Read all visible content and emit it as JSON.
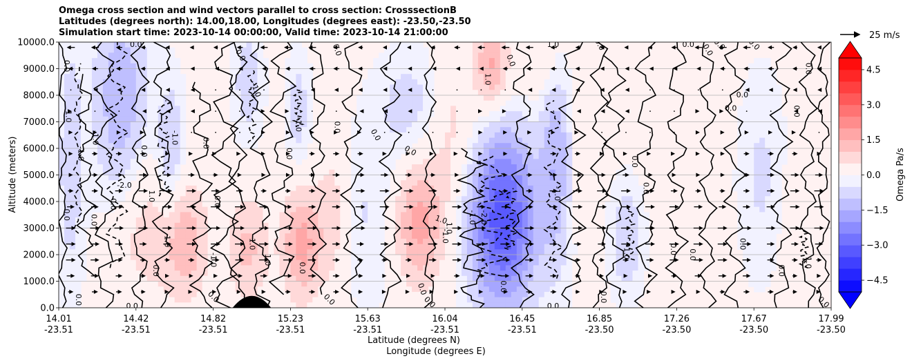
{
  "chart_data": {
    "type": "contour",
    "title_lines": [
      "Omega cross section and wind vectors parallel to cross section: CrosssectionB",
      "Latitudes (degrees north): 14.00,18.00, Longitudes (degrees east): -23.50,-23.50",
      "Simulation start time: 2023-10-14 00:00:00, Valid time: 2023-10-14 21:00:00"
    ],
    "ylabel": "Altitude (meters)",
    "xlabel_lat": "Latitude (degrees N)",
    "xlabel_lon": "Longitude (degrees E)",
    "ylim": [
      0,
      10000
    ],
    "y_ticks": [
      {
        "value": 0,
        "label": "0.0"
      },
      {
        "value": 1000,
        "label": "1000.0"
      },
      {
        "value": 2000,
        "label": "2000.0"
      },
      {
        "value": 3000,
        "label": "3000.0"
      },
      {
        "value": 4000,
        "label": "4000.0"
      },
      {
        "value": 5000,
        "label": "5000.0"
      },
      {
        "value": 6000,
        "label": "6000.0"
      },
      {
        "value": 7000,
        "label": "7000.0"
      },
      {
        "value": 8000,
        "label": "8000.0"
      },
      {
        "value": 9000,
        "label": "9000.0"
      },
      {
        "value": 10000,
        "label": "10000.0"
      }
    ],
    "x_ticks": [
      {
        "lat": "14.01",
        "lon": "-23.51",
        "frac": 0.0
      },
      {
        "lat": "14.42",
        "lon": "-23.51",
        "frac": 0.1
      },
      {
        "lat": "14.82",
        "lon": "-23.51",
        "frac": 0.2
      },
      {
        "lat": "15.23",
        "lon": "-23.51",
        "frac": 0.3
      },
      {
        "lat": "15.63",
        "lon": "-23.51",
        "frac": 0.4
      },
      {
        "lat": "16.04",
        "lon": "-23.51",
        "frac": 0.5
      },
      {
        "lat": "16.45",
        "lon": "-23.51",
        "frac": 0.6
      },
      {
        "lat": "16.85",
        "lon": "-23.50",
        "frac": 0.7
      },
      {
        "lat": "17.26",
        "lon": "-23.50",
        "frac": 0.8
      },
      {
        "lat": "17.67",
        "lon": "-23.50",
        "frac": 0.9
      },
      {
        "lat": "17.99",
        "lon": "-23.50",
        "frac": 1.0
      }
    ],
    "colorbar": {
      "label": "Omega Pa/s",
      "range": [
        -5.0,
        5.0
      ],
      "step": 0.5,
      "ticks": [
        "4.5",
        "3.0",
        "1.5",
        "0.0",
        "−1.5",
        "−3.0",
        "−4.5"
      ],
      "tick_values": [
        4.5,
        3.0,
        1.5,
        0.0,
        -1.5,
        -3.0,
        -4.5
      ]
    },
    "quiver_key": {
      "label": "25 m/s",
      "speed": 25
    },
    "features": [
      {
        "kind": "neg",
        "x": 0.08,
        "y": 7800,
        "sx": 0.025,
        "sy": 2800,
        "amp": -1.4
      },
      {
        "kind": "neg",
        "x": 0.015,
        "y": 5500,
        "sx": 0.012,
        "sy": 3500,
        "amp": -0.8
      },
      {
        "kind": "neg",
        "x": 0.145,
        "y": 5800,
        "sx": 0.012,
        "sy": 1800,
        "amp": -1.1
      },
      {
        "kind": "neg",
        "x": 0.245,
        "y": 8500,
        "sx": 0.012,
        "sy": 1400,
        "amp": -0.9
      },
      {
        "kind": "neg",
        "x": 0.31,
        "y": 7400,
        "sx": 0.01,
        "sy": 1400,
        "amp": -0.8
      },
      {
        "kind": "neg",
        "x": 0.41,
        "y": 3500,
        "sx": 0.04,
        "sy": 2200,
        "amp": -0.6
      },
      {
        "kind": "neg",
        "x": 0.575,
        "y": 3300,
        "sx": 0.03,
        "sy": 2300,
        "amp": -3.4
      },
      {
        "kind": "neg",
        "x": 0.645,
        "y": 5600,
        "sx": 0.015,
        "sy": 2800,
        "amp": -1.4
      },
      {
        "kind": "neg",
        "x": 0.735,
        "y": 2600,
        "sx": 0.014,
        "sy": 1400,
        "amp": -1.0
      },
      {
        "kind": "neg",
        "x": 0.455,
        "y": 7600,
        "sx": 0.03,
        "sy": 1400,
        "amp": -0.7
      },
      {
        "kind": "neg",
        "x": 0.91,
        "y": 5000,
        "sx": 0.02,
        "sy": 2500,
        "amp": -0.6
      },
      {
        "kind": "pos",
        "x": 0.11,
        "y": 3000,
        "sx": 0.03,
        "sy": 2000,
        "amp": 0.8
      },
      {
        "kind": "pos",
        "x": 0.165,
        "y": 2500,
        "sx": 0.02,
        "sy": 1600,
        "amp": 1.3
      },
      {
        "kind": "pos",
        "x": 0.245,
        "y": 2200,
        "sx": 0.02,
        "sy": 1500,
        "amp": 1.1
      },
      {
        "kind": "pos",
        "x": 0.315,
        "y": 2400,
        "sx": 0.018,
        "sy": 1500,
        "amp": 1.7
      },
      {
        "kind": "pos",
        "x": 0.355,
        "y": 3500,
        "sx": 0.015,
        "sy": 2000,
        "amp": 0.9
      },
      {
        "kind": "pos",
        "x": 0.465,
        "y": 3200,
        "sx": 0.025,
        "sy": 1700,
        "amp": 1.9
      },
      {
        "kind": "pos",
        "x": 0.51,
        "y": 7000,
        "sx": 0.02,
        "sy": 2000,
        "amp": 0.7
      },
      {
        "kind": "pos",
        "x": 0.56,
        "y": 9100,
        "sx": 0.015,
        "sy": 1200,
        "amp": 1.6
      },
      {
        "kind": "pos",
        "x": 0.625,
        "y": 9200,
        "sx": 0.025,
        "sy": 1000,
        "amp": 0.6
      },
      {
        "kind": "pos",
        "x": 0.675,
        "y": 5500,
        "sx": 0.015,
        "sy": 2000,
        "amp": 0.5
      },
      {
        "kind": "pos",
        "x": 0.8,
        "y": 7500,
        "sx": 0.03,
        "sy": 2000,
        "amp": 0.4
      },
      {
        "kind": "pos",
        "x": 0.965,
        "y": 3000,
        "sx": 0.02,
        "sy": 2000,
        "amp": 0.4
      }
    ],
    "contour_lines": [
      {
        "style": "solid",
        "x": 0.005,
        "y0": 0,
        "y1": 10000,
        "wig": 0.004
      },
      {
        "style": "solid",
        "x": 0.035,
        "y0": 1200,
        "y1": 8800,
        "wig": 0.008
      },
      {
        "style": "dashed",
        "x": 0.025,
        "y0": 2800,
        "y1": 9200,
        "wig": 0.004
      },
      {
        "style": "dashed",
        "x": 0.075,
        "y0": 1500,
        "y1": 10000,
        "wig": 0.01
      },
      {
        "style": "solid",
        "x": 0.06,
        "y0": 0,
        "y1": 10000,
        "wig": 0.01
      },
      {
        "style": "solid",
        "x": 0.105,
        "y0": 0,
        "y1": 10000,
        "wig": 0.008
      },
      {
        "style": "dashed",
        "x": 0.135,
        "y0": 4200,
        "y1": 7800,
        "wig": 0.006
      },
      {
        "style": "solid",
        "x": 0.135,
        "y0": 0,
        "y1": 10000,
        "wig": 0.01
      },
      {
        "style": "solid",
        "x": 0.185,
        "y0": 0,
        "y1": 8500,
        "wig": 0.01
      },
      {
        "style": "solid",
        "x": 0.215,
        "y0": 0,
        "y1": 10000,
        "wig": 0.012
      },
      {
        "style": "dashed",
        "x": 0.25,
        "y0": 6200,
        "y1": 9000,
        "wig": 0.004
      },
      {
        "style": "solid",
        "x": 0.232,
        "y0": 0,
        "y1": 10000,
        "wig": 0.008
      },
      {
        "style": "solid",
        "x": 0.262,
        "y0": 0,
        "y1": 10000,
        "wig": 0.01
      },
      {
        "style": "solid",
        "x": 0.29,
        "y0": 500,
        "y1": 10000,
        "wig": 0.012
      },
      {
        "style": "dashed",
        "x": 0.31,
        "y0": 6800,
        "y1": 8200,
        "wig": 0.004
      },
      {
        "style": "solid",
        "x": 0.335,
        "y0": 500,
        "y1": 10000,
        "wig": 0.008
      },
      {
        "style": "solid",
        "x": 0.38,
        "y0": 0,
        "y1": 10000,
        "wig": 0.01
      },
      {
        "style": "solid",
        "x": 0.43,
        "y0": 0,
        "y1": 10000,
        "wig": 0.01
      },
      {
        "style": "solid",
        "x": 0.48,
        "y0": 0,
        "y1": 10000,
        "wig": 0.006
      },
      {
        "style": "solid",
        "x": 0.535,
        "y0": 0,
        "y1": 6000,
        "wig": 0.012
      },
      {
        "style": "dashed",
        "x": 0.56,
        "y0": 1200,
        "y1": 5800,
        "wig": 0.014
      },
      {
        "style": "dashed",
        "x": 0.585,
        "y0": 2200,
        "y1": 4500,
        "wig": 0.006
      },
      {
        "style": "solid",
        "x": 0.6,
        "y0": 0,
        "y1": 10000,
        "wig": 0.01
      },
      {
        "style": "dashed",
        "x": 0.64,
        "y0": 1100,
        "y1": 7800,
        "wig": 0.008
      },
      {
        "style": "solid",
        "x": 0.665,
        "y0": 0,
        "y1": 10000,
        "wig": 0.012
      },
      {
        "style": "solid",
        "x": 0.7,
        "y0": 0,
        "y1": 10000,
        "wig": 0.008
      },
      {
        "style": "solid",
        "x": 0.72,
        "y0": 0,
        "y1": 9500,
        "wig": 0.01
      },
      {
        "style": "dashed",
        "x": 0.74,
        "y0": 1800,
        "y1": 3800,
        "wig": 0.004
      },
      {
        "style": "solid",
        "x": 0.76,
        "y0": 0,
        "y1": 10000,
        "wig": 0.01
      },
      {
        "style": "solid",
        "x": 0.8,
        "y0": 0,
        "y1": 10000,
        "wig": 0.01
      },
      {
        "style": "solid",
        "x": 0.84,
        "y0": 0,
        "y1": 10000,
        "wig": 0.008
      },
      {
        "style": "solid",
        "x": 0.875,
        "y0": 0,
        "y1": 10000,
        "wig": 0.01
      },
      {
        "style": "solid",
        "x": 0.935,
        "y0": 0,
        "y1": 10000,
        "wig": 0.01
      },
      {
        "style": "solid",
        "x": 0.97,
        "y0": 0,
        "y1": 10000,
        "wig": 0.008
      },
      {
        "style": "dashed",
        "x": 0.965,
        "y0": 1500,
        "y1": 3000,
        "wig": 0.004
      },
      {
        "style": "solid",
        "x": 0.99,
        "y0": 0,
        "y1": 10000,
        "wig": 0.006
      }
    ],
    "contour_labels": [
      {
        "text": "0.0",
        "x": 0.01,
        "y": 9100,
        "rot": -90
      },
      {
        "text": "1.0",
        "x": 0.012,
        "y": 7200,
        "rot": -90
      },
      {
        "text": "-1.0",
        "x": 0.028,
        "y": 5800,
        "rot": -90
      },
      {
        "text": "0.0",
        "x": 0.01,
        "y": 3500,
        "rot": -90
      },
      {
        "text": "0.0",
        "x": 0.025,
        "y": 300,
        "rot": -90
      },
      {
        "text": "0.0",
        "x": 0.045,
        "y": 3300,
        "rot": -90
      },
      {
        "text": "-1.0",
        "x": 0.047,
        "y": 6400,
        "rot": -90
      },
      {
        "text": "-2.0",
        "x": 0.085,
        "y": 4600,
        "rot": 0
      },
      {
        "text": "0.0",
        "x": 0.07,
        "y": 3900,
        "rot": -90
      },
      {
        "text": "0.0",
        "x": 0.1,
        "y": 9900,
        "rot": 0
      },
      {
        "text": "0.0",
        "x": 0.11,
        "y": 5900,
        "rot": -90
      },
      {
        "text": "1.0",
        "x": 0.12,
        "y": 4200,
        "rot": -90
      },
      {
        "text": "1.0",
        "x": 0.14,
        "y": 2500,
        "rot": -90
      },
      {
        "text": "0.0",
        "x": 0.125,
        "y": 1400,
        "rot": -90
      },
      {
        "text": "0.0",
        "x": 0.095,
        "y": 50,
        "rot": 0
      },
      {
        "text": "-1.0",
        "x": 0.15,
        "y": 6400,
        "rot": -90
      },
      {
        "text": "0.0",
        "x": 0.19,
        "y": 6200,
        "rot": -90
      },
      {
        "text": "0.0",
        "x": 0.205,
        "y": 4000,
        "rot": -90
      },
      {
        "text": "-1.0",
        "x": 0.2,
        "y": 1800,
        "rot": -90
      },
      {
        "text": "0.0",
        "x": 0.2,
        "y": 400,
        "rot": -45
      },
      {
        "text": "0.0",
        "x": 0.24,
        "y": 10100,
        "rot": 0
      },
      {
        "text": "-1.0",
        "x": 0.255,
        "y": 8200,
        "rot": -70
      },
      {
        "text": "0.0",
        "x": 0.235,
        "y": 9500,
        "rot": -60
      },
      {
        "text": "1.0",
        "x": 0.25,
        "y": 2400,
        "rot": -90
      },
      {
        "text": "1.0",
        "x": 0.27,
        "y": 1800,
        "rot": -90
      },
      {
        "text": "-1.0",
        "x": 0.31,
        "y": 6900,
        "rot": -90
      },
      {
        "text": "0.0",
        "x": 0.298,
        "y": 5800,
        "rot": -90
      },
      {
        "text": "0.0",
        "x": 0.315,
        "y": 1500,
        "rot": -90
      },
      {
        "text": "0.0",
        "x": 0.35,
        "y": 300,
        "rot": -45
      },
      {
        "text": "0.0",
        "x": 0.36,
        "y": 6800,
        "rot": -90
      },
      {
        "text": "0.0",
        "x": 0.36,
        "y": 9700,
        "rot": -70
      },
      {
        "text": "0.0",
        "x": 0.41,
        "y": 6500,
        "rot": -60
      },
      {
        "text": "0.0",
        "x": 0.455,
        "y": 5900,
        "rot": -30
      },
      {
        "text": "0.0",
        "x": 0.47,
        "y": 700,
        "rot": -70
      },
      {
        "text": "0.0",
        "x": 0.48,
        "y": 200,
        "rot": -45
      },
      {
        "text": "1.0",
        "x": 0.505,
        "y": 3000,
        "rot": -90
      },
      {
        "text": "-1.0",
        "x": 0.5,
        "y": 2700,
        "rot": -90
      },
      {
        "text": "1.0",
        "x": 0.495,
        "y": 3300,
        "rot": -20
      },
      {
        "text": "-1.0",
        "x": 0.535,
        "y": 3400,
        "rot": -90
      },
      {
        "text": "-2.0",
        "x": 0.55,
        "y": 3400,
        "rot": -90
      },
      {
        "text": "1.0",
        "x": 0.555,
        "y": 8600,
        "rot": -90
      },
      {
        "text": "0.0",
        "x": 0.585,
        "y": 9300,
        "rot": -70
      },
      {
        "text": "0.0",
        "x": 0.575,
        "y": 800,
        "rot": -90
      },
      {
        "text": "-1.0",
        "x": 0.645,
        "y": 4300,
        "rot": -90
      },
      {
        "text": "0.0",
        "x": 0.64,
        "y": 50,
        "rot": 0
      },
      {
        "text": "1.0",
        "x": 0.64,
        "y": 9900,
        "rot": 0
      },
      {
        "text": "0.0",
        "x": 0.7,
        "y": 9900,
        "rot": -60
      },
      {
        "text": "0.0",
        "x": 0.705,
        "y": 400,
        "rot": -90
      },
      {
        "text": "0.0",
        "x": 0.745,
        "y": 5500,
        "rot": -90
      },
      {
        "text": "-1.0",
        "x": 0.735,
        "y": 2100,
        "rot": -90
      },
      {
        "text": "0.0",
        "x": 0.76,
        "y": 4500,
        "rot": -90
      },
      {
        "text": "0.0",
        "x": 0.795,
        "y": 2200,
        "rot": -90
      },
      {
        "text": "0.0",
        "x": 0.82,
        "y": 2000,
        "rot": -90
      },
      {
        "text": "0.0",
        "x": 0.815,
        "y": 9900,
        "rot": 0
      },
      {
        "text": "0.0",
        "x": 0.84,
        "y": 9700,
        "rot": -60
      },
      {
        "text": "0.0",
        "x": 0.885,
        "y": 8000,
        "rot": 0
      },
      {
        "text": "0.0",
        "x": 0.87,
        "y": 7500,
        "rot": 0
      },
      {
        "text": "0.0",
        "x": 0.855,
        "y": 9900,
        "rot": -45
      },
      {
        "text": "0.0",
        "x": 0.9,
        "y": 9900,
        "rot": -45
      },
      {
        "text": "0.0",
        "x": 0.885,
        "y": 2400,
        "rot": -90
      },
      {
        "text": "0.0",
        "x": 0.935,
        "y": 1400,
        "rot": -90
      },
      {
        "text": "0.0",
        "x": 0.955,
        "y": 7400,
        "rot": -90
      },
      {
        "text": "1.0",
        "x": 0.97,
        "y": 1700,
        "rot": -90
      },
      {
        "text": "0.0",
        "x": 0.97,
        "y": 9000,
        "rot": -90
      },
      {
        "text": "0.0",
        "x": 0.99,
        "y": 200,
        "rot": -45
      }
    ],
    "wind": {
      "columns": 32,
      "rows": [
        {
          "y": 9800,
          "u": -3
        },
        {
          "y": 9000,
          "u": -2
        },
        {
          "y": 8200,
          "u": -1
        },
        {
          "y": 7400,
          "u": 0
        },
        {
          "y": 6600,
          "u": 1
        },
        {
          "y": 5800,
          "u": 2
        },
        {
          "y": 5000,
          "u": 3
        },
        {
          "y": 4400,
          "u": 4
        },
        {
          "y": 3800,
          "u": 5
        },
        {
          "y": 3000,
          "u": 6
        },
        {
          "y": 2400,
          "u": 5
        },
        {
          "y": 1800,
          "u": 4
        },
        {
          "y": 1200,
          "u": 3
        },
        {
          "y": 600,
          "u": 2
        }
      ]
    },
    "terrain": {
      "x_center": 0.25,
      "width": 0.05,
      "height": 180
    }
  }
}
